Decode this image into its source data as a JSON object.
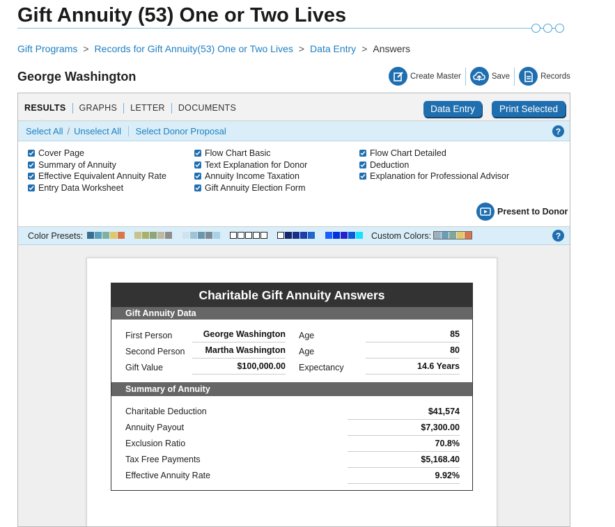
{
  "header": {
    "title": "Gift Annuity (53) One or Two Lives",
    "breadcrumb": [
      "Gift Programs",
      "Records for Gift Annuity(53) One or Two Lives",
      "Data Entry",
      "Answers"
    ],
    "breadcrumb_sep": ">",
    "donor_name": "George Washington",
    "toolbar": {
      "create_master": "Create Master",
      "save": "Save",
      "records": "Records"
    }
  },
  "tabs": {
    "items": [
      "RESULTS",
      "GRAPHS",
      "LETTER",
      "DOCUMENTS"
    ],
    "active": "RESULTS",
    "data_entry_button": "Data Entry",
    "print_selected_button": "Print Selected"
  },
  "selection": {
    "select_all": "Select All",
    "divider": "/",
    "unselect_all": "Unselect All",
    "select_donor_proposal": "Select Donor Proposal",
    "help": "?"
  },
  "documents": {
    "col1": [
      "Cover Page",
      "Summary of Annuity",
      "Effective Equivalent Annuity Rate",
      "Entry Data Worksheet"
    ],
    "col2": [
      "Flow Chart Basic",
      "Text Explanation for Donor",
      "Annuity Income Taxation",
      "Gift Annuity Election Form"
    ],
    "col3": [
      "Flow Chart Detailed",
      "Deduction",
      "Explanation for Professional Advisor"
    ],
    "present_to_donor": "Present to Donor"
  },
  "colors": {
    "presets_label": "Color Presets:",
    "custom_label": "Custom Colors:",
    "accent": "#1f6fb0",
    "presets": [
      [
        "#3a6f91",
        "#5b9fb8",
        "#7fb0a1",
        "#e0c76a",
        "#d9764a"
      ],
      [
        "#c9c28a",
        "#a8b06a",
        "#8ea57a",
        "#bcb9a0",
        "#8d8d8d"
      ],
      [
        "#cfe3ee",
        "#9fc3d6",
        "#6a97ad",
        "#7b8c96",
        "#a8d1e8"
      ],
      [
        "#ffffff",
        "#ffffff",
        "#ffffff",
        "#ffffff",
        "#ffffff"
      ],
      [
        "#ffffff",
        "#14286b",
        "#1a2f8a",
        "#1e3fa8",
        "#2266c8"
      ],
      [
        "#1e5eff",
        "#0033dd",
        "#2222cc",
        "#0b5cd6",
        "#19e1ff"
      ]
    ],
    "custom": [
      "#9bb1bf",
      "#6c9cb6",
      "#7fa89a",
      "#e0c76a",
      "#d9764a"
    ]
  },
  "report": {
    "title": "Charitable Gift Annuity Answers",
    "data_heading": "Gift Annuity Data",
    "first_person_label": "First Person",
    "first_person": "George Washington",
    "second_person_label": "Second Person",
    "second_person": "Martha Washington",
    "gift_value_label": "Gift Value",
    "gift_value": "$100,000.00",
    "age_label": "Age",
    "age1": "85",
    "age2": "80",
    "expectancy_label": "Expectancy",
    "expectancy": "14.6 Years",
    "summary_heading": "Summary of Annuity",
    "summary": [
      {
        "label": "Charitable Deduction",
        "value": "$41,574"
      },
      {
        "label": "Annuity Payout",
        "value": "$7,300.00"
      },
      {
        "label": "Exclusion Ratio",
        "value": "70.8%"
      },
      {
        "label": "Tax Free Payments",
        "value": "$5,168.40"
      },
      {
        "label": "Effective Annuity Rate",
        "value": "9.92%"
      }
    ]
  }
}
